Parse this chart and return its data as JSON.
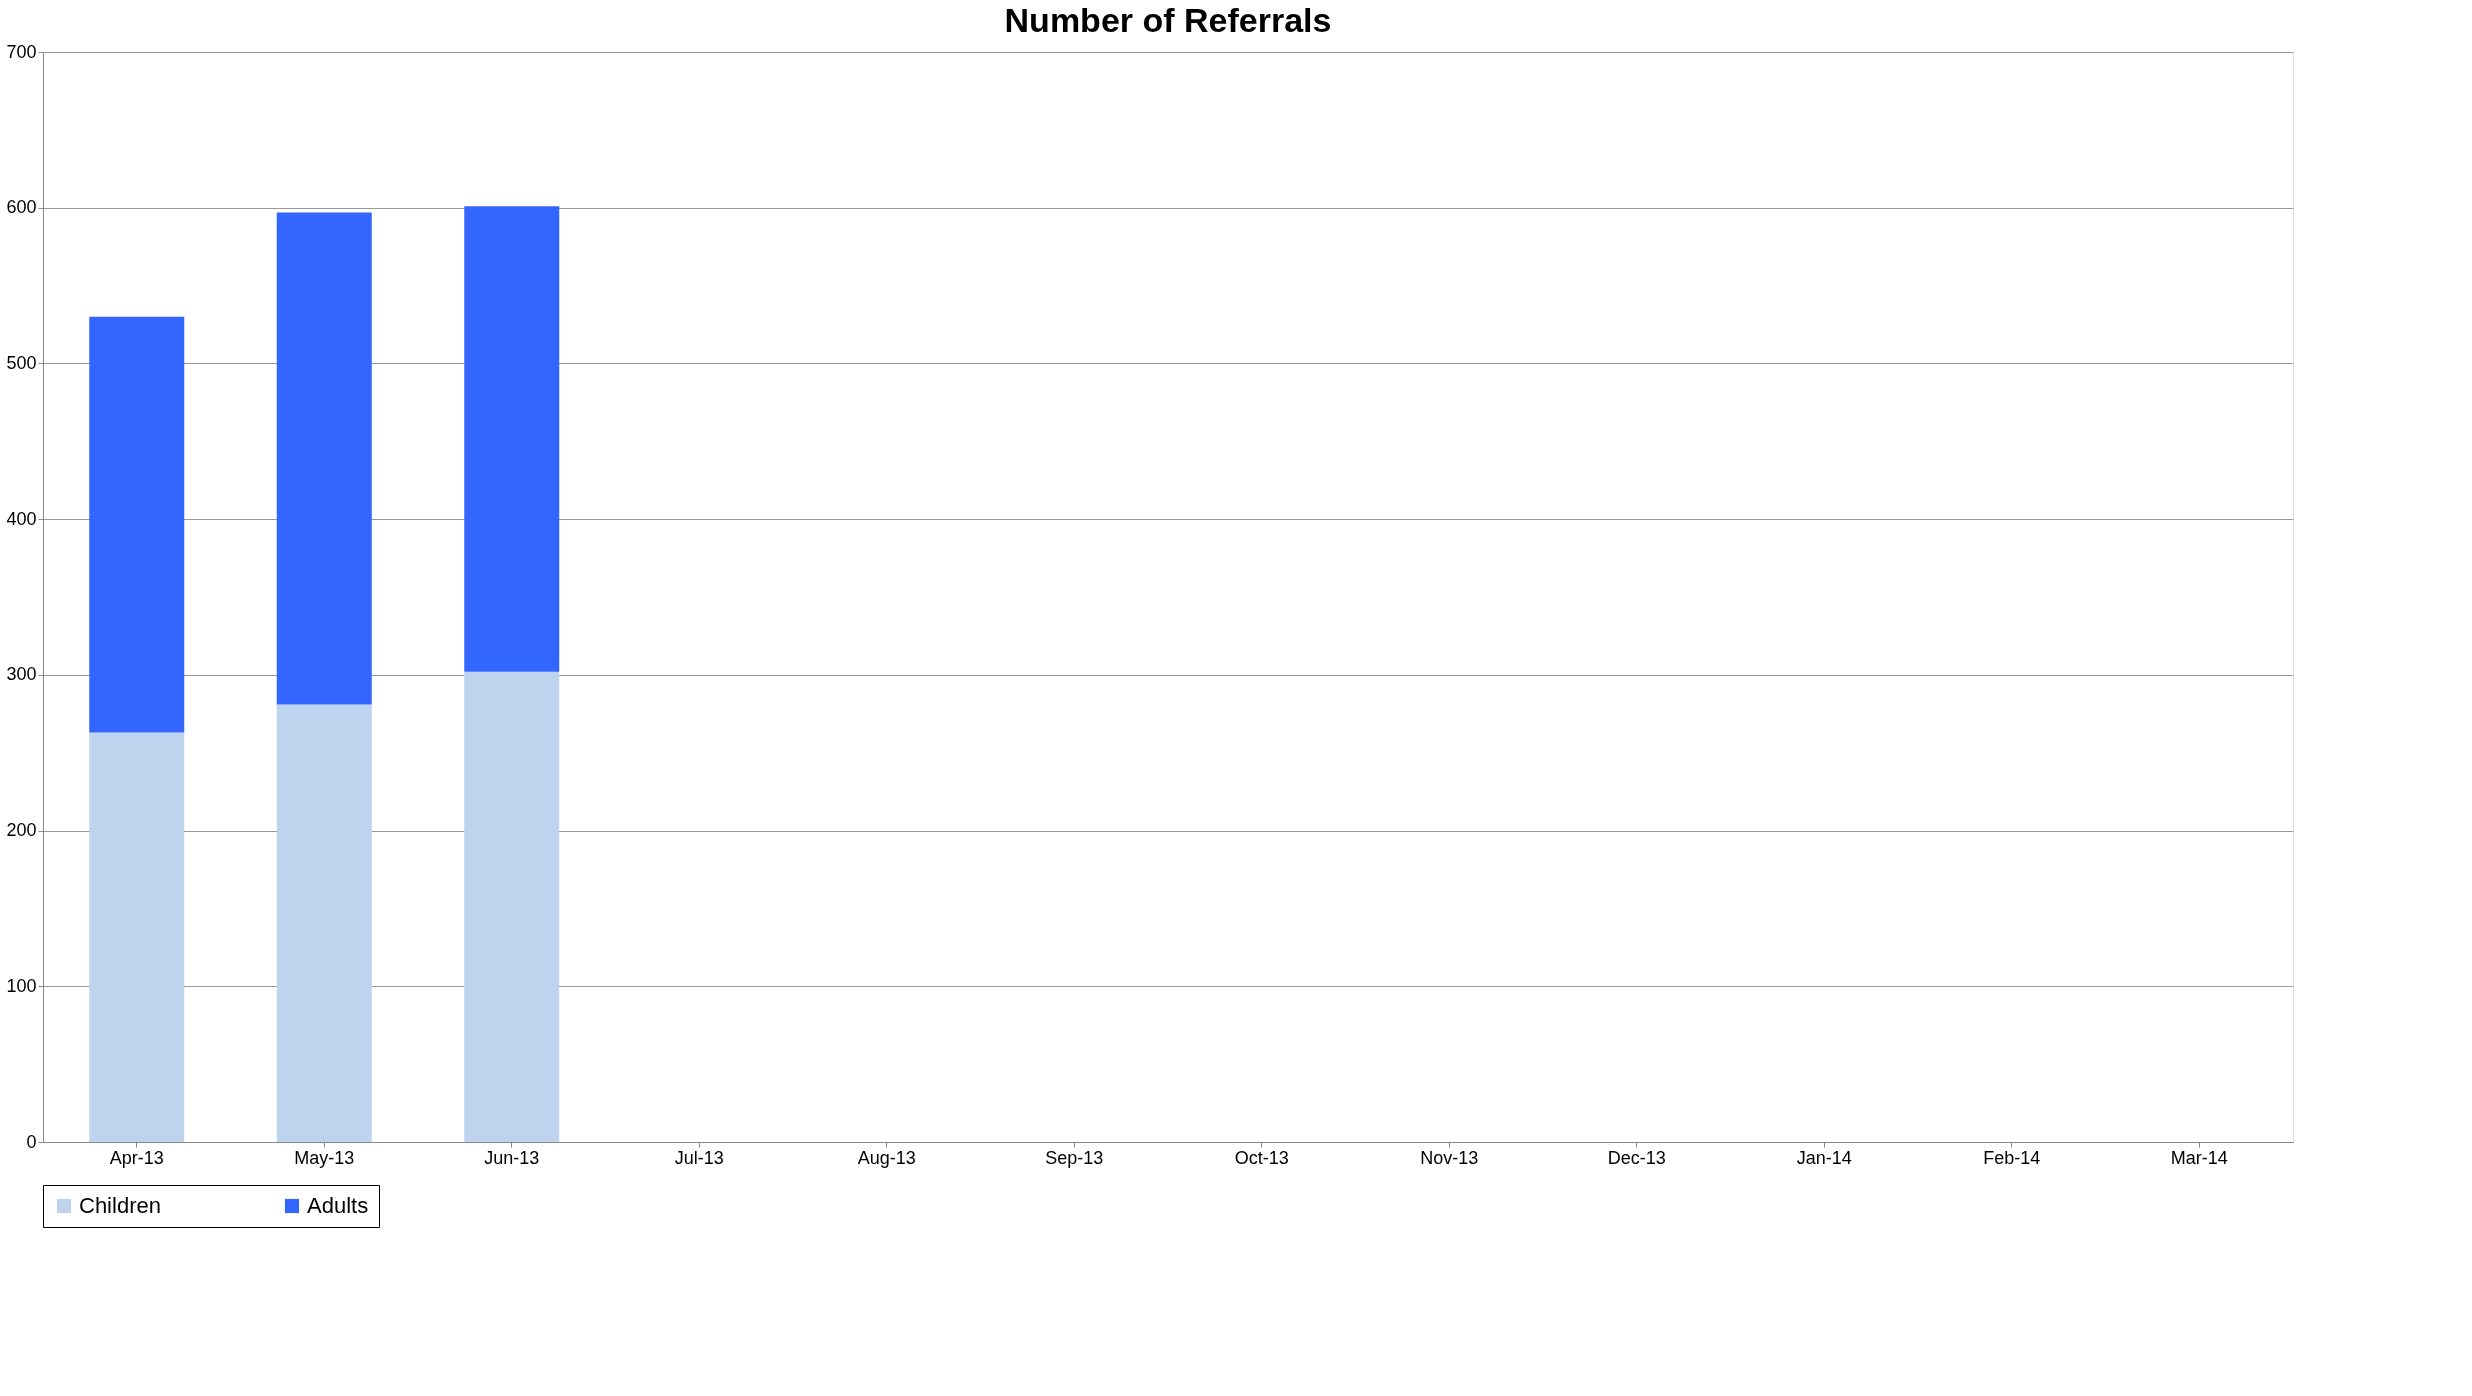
{
  "chart_data": {
    "type": "bar",
    "title": "Number of Referrals",
    "stacked": true,
    "categories": [
      "Apr-13",
      "May-13",
      "Jun-13",
      "Jul-13",
      "Aug-13",
      "Sep-13",
      "Oct-13",
      "Nov-13",
      "Dec-13",
      "Jan-14",
      "Feb-14",
      "Mar-14"
    ],
    "series": [
      {
        "name": "Children",
        "color": "#bdd3ee",
        "values": [
          263,
          281,
          302,
          null,
          null,
          null,
          null,
          null,
          null,
          null,
          null,
          null
        ]
      },
      {
        "name": "Adults",
        "color": "#3366ff",
        "values": [
          267,
          316,
          299,
          null,
          null,
          null,
          null,
          null,
          null,
          null,
          null,
          null
        ]
      }
    ],
    "ylim": [
      0,
      700
    ],
    "yticks": [
      0,
      100,
      200,
      300,
      400,
      500,
      600,
      700
    ],
    "grid": "y",
    "legend": "bottom"
  }
}
